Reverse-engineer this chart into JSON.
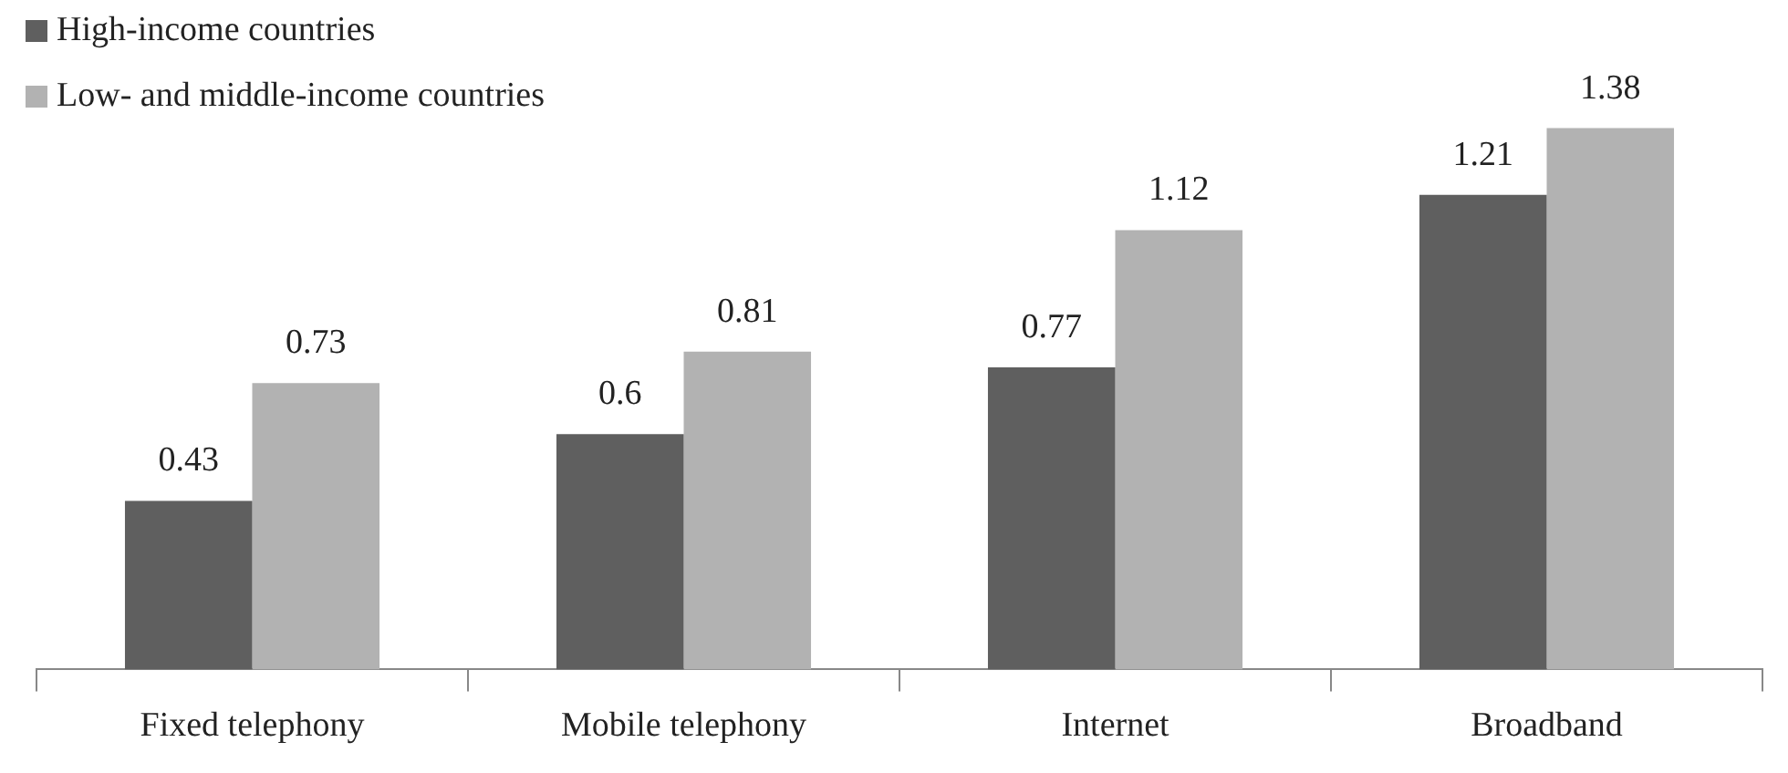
{
  "chart_data": {
    "type": "bar",
    "categories": [
      "Fixed telephony",
      "Mobile telephony",
      "Internet",
      "Broadband"
    ],
    "series": [
      {
        "name": "High-income countries",
        "color": "#5f5f5f",
        "values": [
          0.43,
          0.6,
          0.77,
          1.21
        ]
      },
      {
        "name": "Low- and middle-income countries",
        "color": "#b2b2b2",
        "values": [
          0.73,
          0.81,
          1.12,
          1.38
        ]
      }
    ],
    "relative": false,
    "data_labels": true,
    "legend": "top left",
    "grid": false
  }
}
